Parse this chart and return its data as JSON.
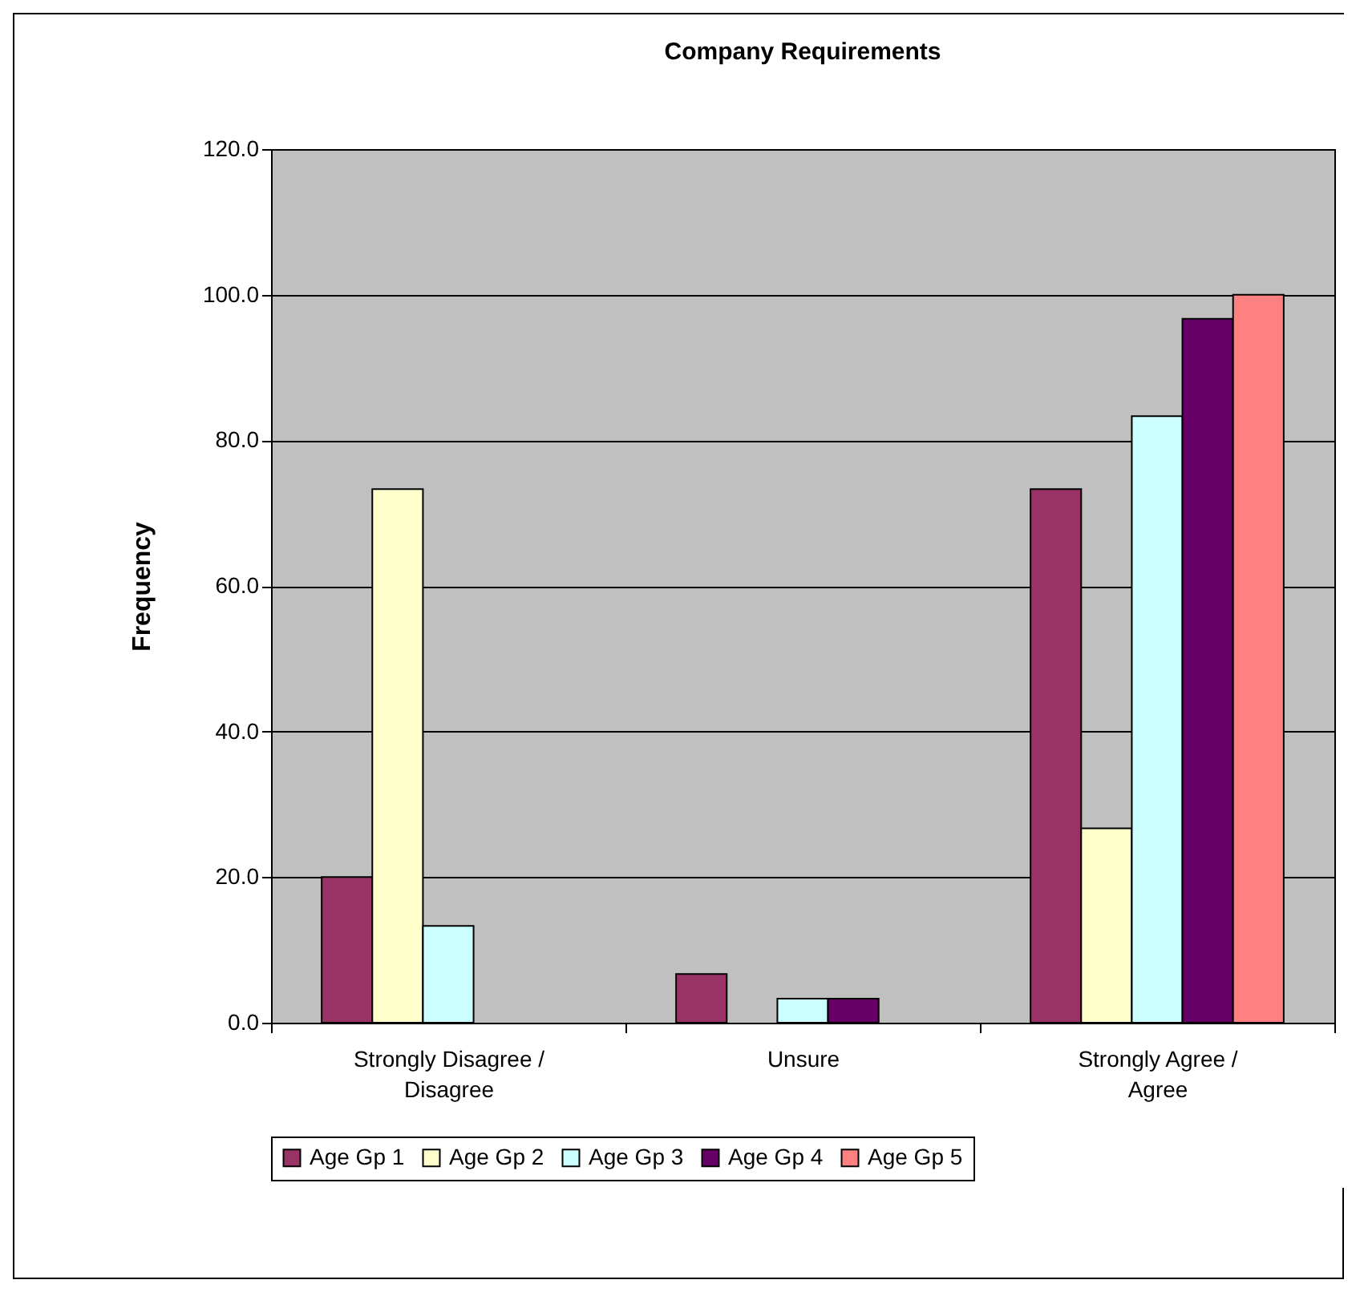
{
  "chart_data": {
    "type": "bar",
    "title": "Company Requirements",
    "ylabel": "Frequency",
    "categories": [
      "Strongly Disagree / Disagree",
      "Unsure",
      "Strongly Agree / Agree"
    ],
    "series": [
      {
        "name": "Age Gp 1",
        "color": "#993366",
        "values": [
          20.0,
          6.7,
          73.3
        ]
      },
      {
        "name": "Age Gp 2",
        "color": "#ffffcc",
        "values": [
          73.3,
          null,
          26.7
        ]
      },
      {
        "name": "Age Gp 3",
        "color": "#ccffff",
        "values": [
          13.3,
          3.3,
          83.3
        ]
      },
      {
        "name": "Age Gp 4",
        "color": "#660066",
        "values": [
          null,
          3.3,
          96.7
        ]
      },
      {
        "name": "Age Gp 5",
        "color": "#ff8080",
        "values": [
          null,
          null,
          100.0
        ]
      }
    ],
    "ylim": [
      0,
      120
    ],
    "yticks": [
      {
        "value": 0,
        "label": "0.0"
      },
      {
        "value": 20,
        "label": "20.0"
      },
      {
        "value": 40,
        "label": "40.0"
      },
      {
        "value": 60,
        "label": "60.0"
      },
      {
        "value": 80,
        "label": "80.0"
      },
      {
        "value": 100,
        "label": "100.0"
      },
      {
        "value": 120,
        "label": "120.0"
      }
    ],
    "grid": "y",
    "legend": "bottom"
  }
}
